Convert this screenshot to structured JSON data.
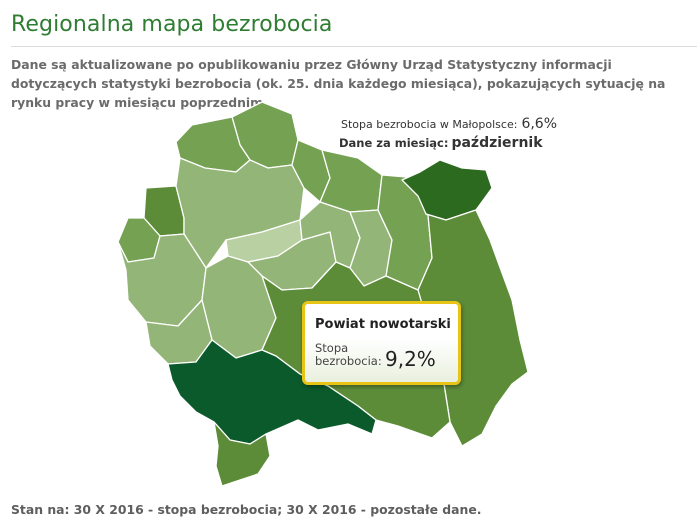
{
  "page": {
    "title": "Regionalna mapa bezrobocia",
    "description": "Dane są aktualizowane po opublikowaniu przez Główny Urząd Statystyczny informacji dotyczących statystyki bezrobocia (ok. 25. dnia każdego miesiąca), pokazujących sytuację na rynku pracy w miesiącu poprzednim.",
    "footer": "Stan na: 30 X 2016 - stopa bezrobocia; 30 X 2016 - pozostałe dane."
  },
  "summary": {
    "rate_label": "Stopa bezrobocia w Małopolsce:",
    "rate_value": "6,6%",
    "month_label": "Dane za miesiąc:",
    "month_value": "październik"
  },
  "tooltip": {
    "title": "Powiat nowotarski",
    "rate_label": "Stopa bezrobocia:",
    "rate_value": "9,2%"
  },
  "colors": {
    "title": "#2f7d32",
    "map_border": "#ffffff",
    "shade_lightest": "#b9d0a2",
    "shade_light": "#93b577",
    "shade_medium": "#75a152",
    "shade_dark": "#5d8c39",
    "shade_darkest": "#2b6a1f",
    "highlight": "#0b5a2b",
    "tooltip_border": "#e7c416"
  }
}
